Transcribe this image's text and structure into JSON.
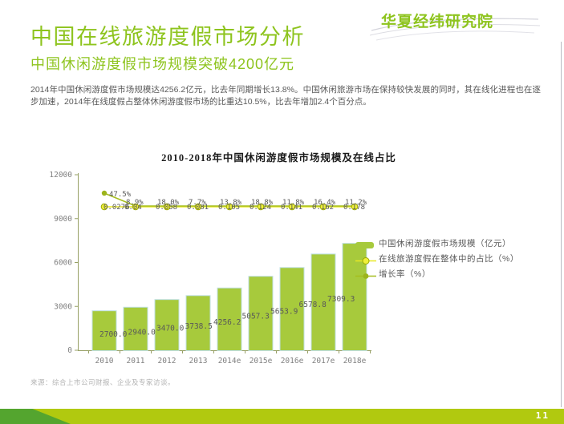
{
  "header": {
    "logo": "华夏经纬研究院",
    "title": "中国在线旅游度假市场分析",
    "subtitle": "中国休闲游度假市场规模突破4200亿元",
    "body": "2014年中国休闲游度假市场规模达4256.2亿元，比去年同期增长13.8%。中国休闲旅游市场在保持较快发展的同时，其在线化进程也在逐步加速，2014年在线度假占整体休闲游度假市场的比重达10.5%，比去年增加2.4个百分点。"
  },
  "chart_data": {
    "type": "bar+line",
    "title": "2010-2018年中国休闲游度假市场规模及在线占比",
    "categories": [
      "2010",
      "2011",
      "2012",
      "2013",
      "2014e",
      "2015e",
      "2016e",
      "2017e",
      "2018e"
    ],
    "series": [
      {
        "name": "中国休闲游度假市场规模（亿元）",
        "type": "bar",
        "values": [
          2700.0,
          2940.0,
          3470.0,
          3738.5,
          4256.2,
          5057.3,
          5653.9,
          6578.8,
          7309.3
        ],
        "labels": [
          "2700.0",
          "2940.0",
          "3470.0",
          "3738.5",
          "4256.2",
          "5057.3",
          "5653.9",
          "6578.8",
          "7309.3"
        ]
      },
      {
        "name": "在线旅游度假在整体中的占比（%）",
        "type": "line",
        "labels": [
          "0.0276",
          "0.04",
          "0.058",
          "0.081",
          "0.105",
          "0.124",
          "0.141",
          "0.162",
          "0.178"
        ]
      },
      {
        "name": "增长率（%）",
        "type": "line",
        "labels": [
          "47.5%",
          "8.9%",
          "18.0%",
          "7.7%",
          "13.8%",
          "18.8%",
          "11.8%",
          "16.4%",
          "11.2%"
        ]
      }
    ],
    "y_axis": {
      "ticks": [
        "0",
        "3000",
        "6000",
        "9000",
        "12000"
      ],
      "max": 12000
    },
    "legend_position": "right",
    "grid": false,
    "colors": {
      "bar": "#a7ca3c",
      "bar_border": "#bfdfe2",
      "line_share": "#e8e824",
      "line_share_marker": "#eef03a",
      "line_share_ring": "#9aa800",
      "line_growth": "#a6be1e",
      "line_growth_marker": "#9cb41c",
      "axis": "#97a065",
      "tick_text": "#808080",
      "label_text": "#595959"
    }
  },
  "footer": {
    "source": "来源：综合上市公司财报、企业及专家访谈。",
    "page_number": "11"
  },
  "theme": {
    "accent_green": "#8ec41e",
    "bottom_bar": "#b1c90f",
    "bottom_bar_dark": "#54a52f"
  }
}
